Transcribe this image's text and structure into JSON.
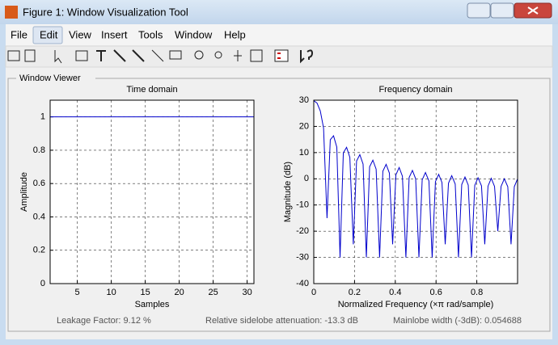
{
  "window": {
    "title": "Figure 1: Window Visualization Tool"
  },
  "menu": [
    "File",
    "Edit",
    "View",
    "Insert",
    "Tools",
    "Window",
    "Help"
  ],
  "panel_title": "Window Viewer",
  "chart_data": [
    {
      "type": "line",
      "title": "Time domain",
      "x_label": "Samples",
      "y_label": "Amplitude",
      "x": [
        1,
        2,
        3,
        4,
        5,
        6,
        7,
        8,
        9,
        10,
        11,
        12,
        13,
        14,
        15,
        16,
        17,
        18,
        19,
        20,
        21,
        22,
        23,
        24,
        25,
        26,
        27,
        28,
        29,
        30,
        31
      ],
      "values": [
        1,
        1,
        1,
        1,
        1,
        1,
        1,
        1,
        1,
        1,
        1,
        1,
        1,
        1,
        1,
        1,
        1,
        1,
        1,
        1,
        1,
        1,
        1,
        1,
        1,
        1,
        1,
        1,
        1,
        1,
        1
      ],
      "color": "#0000cc",
      "xlim": [
        1,
        31
      ],
      "xticks": [
        5,
        10,
        15,
        20,
        25,
        30
      ],
      "ylim": [
        0,
        1.1
      ],
      "yticks": [
        0,
        0.2,
        0.4,
        0.6,
        0.8,
        1
      ],
      "grid": true
    },
    {
      "type": "line",
      "title": "Frequency domain",
      "x_label": "Normalized Frequency  (×π rad/sample)",
      "y_label": "Magnitude (dB)",
      "x": [
        0,
        0.016,
        0.032,
        0.048,
        0.065,
        0.081,
        0.097,
        0.113,
        0.129,
        0.145,
        0.161,
        0.177,
        0.194,
        0.21,
        0.226,
        0.242,
        0.258,
        0.274,
        0.29,
        0.306,
        0.323,
        0.339,
        0.355,
        0.371,
        0.387,
        0.403,
        0.419,
        0.435,
        0.452,
        0.468,
        0.484,
        0.5,
        0.516,
        0.532,
        0.548,
        0.565,
        0.581,
        0.597,
        0.613,
        0.629,
        0.645,
        0.661,
        0.677,
        0.694,
        0.71,
        0.726,
        0.742,
        0.758,
        0.774,
        0.79,
        0.806,
        0.823,
        0.839,
        0.855,
        0.871,
        0.887,
        0.903,
        0.919,
        0.935,
        0.952,
        0.968,
        0.984,
        1
      ],
      "values": [
        29.8,
        28.9,
        25.9,
        19.4,
        -15,
        14.9,
        16.4,
        12.1,
        -30,
        9.9,
        12.0,
        8.2,
        -25,
        6.8,
        9.2,
        5.6,
        -30,
        4.6,
        7.1,
        3.7,
        -30,
        2.9,
        5.5,
        2.2,
        -25,
        1.5,
        4.3,
        1.0,
        -30,
        0.5,
        3.2,
        0.0,
        -30,
        -0.4,
        2.4,
        -0.8,
        -30,
        -1.1,
        1.7,
        -1.4,
        -25,
        -1.7,
        1.2,
        -2.0,
        -30,
        -2.2,
        0.7,
        -2.4,
        -30,
        -2.5,
        0.4,
        -2.7,
        -25,
        -2.8,
        0.2,
        -2.9,
        -20,
        -2.9,
        0.0,
        -3.0,
        -25,
        -3.0,
        0.0
      ],
      "color": "#0000cc",
      "xlim": [
        0,
        1
      ],
      "xticks": [
        0,
        0.2,
        0.4,
        0.6,
        0.8
      ],
      "ylim": [
        -40,
        30
      ],
      "yticks": [
        -40,
        -30,
        -20,
        -10,
        0,
        10,
        20,
        30
      ],
      "grid": true
    }
  ],
  "status": [
    "Leakage Factor: 9.12 %",
    "Relative sidelobe attenuation: -13.3 dB",
    "Mainlobe width (-3dB): 0.054688"
  ]
}
